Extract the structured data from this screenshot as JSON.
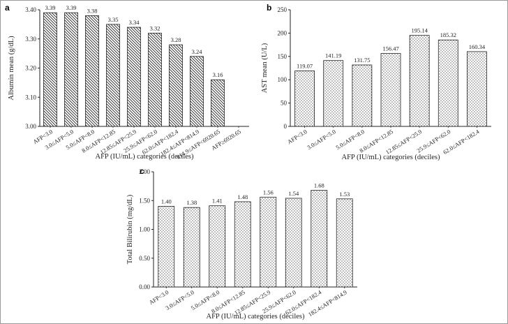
{
  "chart_data": [
    {
      "panel": "a",
      "type": "bar",
      "pattern": "hatch",
      "ylabel": "Albumin mean (g/dL)",
      "xlabel": "AFP (IU/mL) categories (deciles)",
      "ylim": [
        3.0,
        3.4
      ],
      "yticks": [
        "3.00",
        "3.10",
        "3.20",
        "3.30",
        "3.40"
      ],
      "categories": [
        "AFP<3.0",
        "3.0≤AFP<5.0",
        "5.0≤AFP<8.0",
        "8.0≤AFP<12.85",
        "12.85≤AFP<25.9",
        "25.9≤AFP<62.0",
        "62.0≤AFP<182.4",
        "182.4≤AFP<814.9",
        "814.9≤AFP<6920.65",
        "AFP≥6920.65"
      ],
      "values": [
        3.39,
        3.39,
        3.38,
        3.35,
        3.34,
        3.32,
        3.28,
        3.24,
        3.16,
        null
      ],
      "labels": [
        "3.39",
        "3.39",
        "3.38",
        "3.35",
        "3.34",
        "3.32",
        "3.28",
        "3.24",
        "3.16",
        ""
      ]
    },
    {
      "panel": "b",
      "type": "bar",
      "pattern": "dots",
      "ylabel": "AST mean (U/L)",
      "xlabel": "AFP (IU/mL) categories (deciles)",
      "ylim": [
        0,
        250
      ],
      "yticks": [
        "0",
        "50",
        "100",
        "150",
        "200",
        "250"
      ],
      "categories": [
        "AFP<3.0",
        "3.0≤AFP<5.0",
        "5.0≤AFP<8.0",
        "8.0≤AFP<12.85",
        "12.85≤AFP<25.9",
        "25.9≤AFP<62.0",
        "62.0≤AFP<182.4"
      ],
      "values": [
        119.07,
        141.19,
        131.75,
        156.47,
        195.14,
        185.32,
        160.34
      ],
      "labels": [
        "119.07",
        "141.19",
        "131.75",
        "156.47",
        "195.14",
        "185.32",
        "160.34"
      ]
    },
    {
      "panel": "c",
      "type": "bar",
      "pattern": "dots",
      "ylabel": "Total Bilirubin (mg/dL)",
      "xlabel": "AFP (IU/mL) categories (deciles)",
      "ylim": [
        0,
        2.0
      ],
      "yticks": [
        "0.00",
        "0.50",
        "1.00",
        "1.50",
        "2.00"
      ],
      "categories": [
        "AFP<3.0",
        "3.0≤AFP<5.0",
        "5.0≤AFP<8.0",
        "8.0≤AFP<12.85",
        "12.85≤AFP<25.9",
        "25.9≤AFP<62.0",
        "62.0≤AFP<182.4",
        "182.4≤AFP<814.9"
      ],
      "values": [
        1.4,
        1.38,
        1.41,
        1.48,
        1.56,
        1.54,
        1.68,
        1.53
      ],
      "labels": [
        "1.40",
        "1.38",
        "1.41",
        "1.48",
        "1.56",
        "1.54",
        "1.68",
        "1.53"
      ]
    }
  ],
  "colors": {
    "ink": "#222222",
    "frame": "#999999",
    "background": "#eeeeee"
  }
}
